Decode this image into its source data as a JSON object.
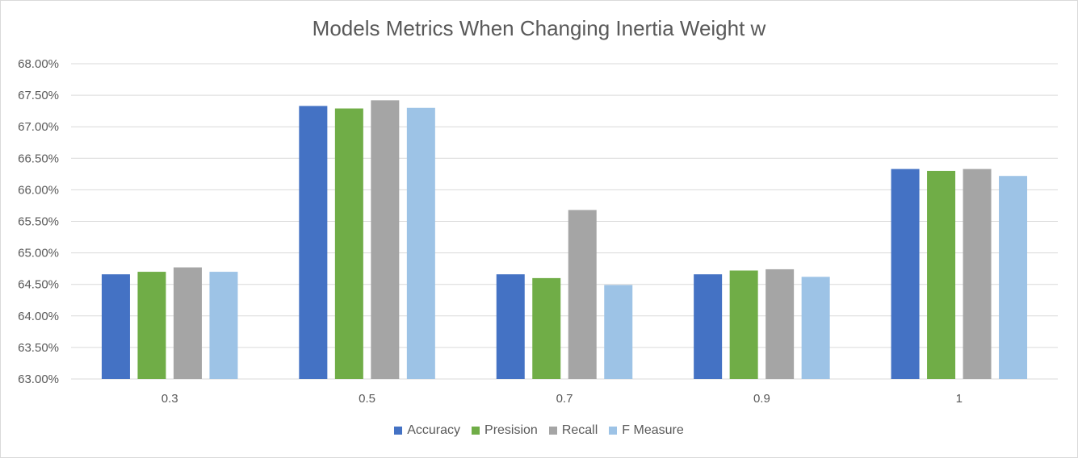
{
  "chart_data": {
    "type": "bar",
    "title": "Models Metrics When Changing Inertia Weight w",
    "categories": [
      "0.3",
      "0.5",
      "0.7",
      "0.9",
      "1"
    ],
    "ylim": [
      0.63,
      0.68
    ],
    "yticks": [
      "63.00%",
      "63.50%",
      "64.00%",
      "64.50%",
      "65.00%",
      "65.50%",
      "66.00%",
      "66.50%",
      "67.00%",
      "67.50%",
      "68.00%"
    ],
    "grid": true,
    "legend_position": "bottom",
    "series": [
      {
        "name": "Accuracy",
        "color": "#4472c4",
        "values": [
          0.6466,
          0.6733,
          0.6466,
          0.6466,
          0.6633
        ]
      },
      {
        "name": "Presision",
        "color": "#70ad47",
        "values": [
          0.647,
          0.6729,
          0.646,
          0.6472,
          0.663
        ]
      },
      {
        "name": "Recall",
        "color": "#a5a5a5",
        "values": [
          0.6477,
          0.6742,
          0.6568,
          0.6474,
          0.6633
        ]
      },
      {
        "name": "F Measure",
        "color": "#9dc3e6",
        "values": [
          0.647,
          0.673,
          0.6449,
          0.6462,
          0.6622
        ]
      }
    ]
  }
}
